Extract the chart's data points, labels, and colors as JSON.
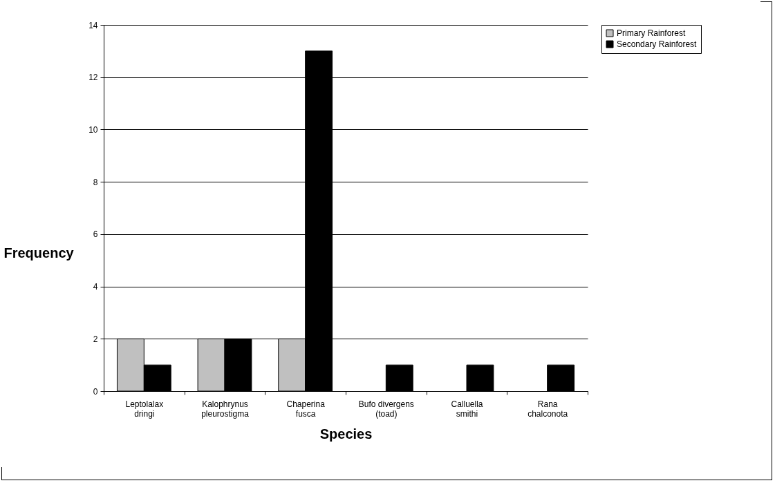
{
  "chart_data": {
    "type": "bar",
    "xlabel": "Species",
    "ylabel": "Frequency",
    "categories": [
      "Leptolalax dringi",
      "Kalophrynus pleurostigma",
      "Chaperina fusca",
      "Bufo divergens (toad)",
      "Calluella smithi",
      "Rana chalconota"
    ],
    "series": [
      {
        "name": "Primary Rainforest",
        "color": "#c0c0c0",
        "values": [
          2,
          2,
          2,
          0,
          0,
          0
        ]
      },
      {
        "name": "Secondary Rainforest",
        "color": "#000000",
        "values": [
          1,
          2,
          13,
          1,
          1,
          1
        ]
      }
    ],
    "ylim": [
      0,
      14
    ],
    "yticks": [
      0,
      2,
      4,
      6,
      8,
      10,
      12,
      14
    ],
    "grid": "y",
    "legend": "right"
  }
}
